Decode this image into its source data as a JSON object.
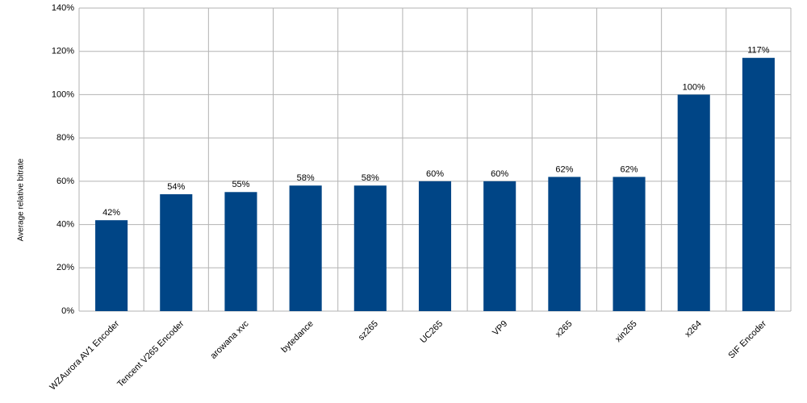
{
  "chart_data": {
    "type": "bar",
    "y_label": "Average relative bitrate",
    "categories": [
      "WZAurora AV1 Encoder",
      "Tencent V265 Encoder",
      "arowana xvc",
      "bytedance",
      "sz265",
      "UC265",
      "VP9",
      "x265",
      "xin265",
      "x264",
      "SIF Encoder"
    ],
    "values": [
      42,
      54,
      55,
      58,
      58,
      60,
      60,
      62,
      62,
      100,
      117
    ],
    "value_labels": [
      "42%",
      "54%",
      "55%",
      "58%",
      "58%",
      "60%",
      "60%",
      "62%",
      "62%",
      "100%",
      "117%"
    ],
    "color": "#004586",
    "ylim": [
      0,
      140
    ],
    "yticks": [
      {
        "value": 0,
        "label": "0%"
      },
      {
        "value": 20,
        "label": "20%"
      },
      {
        "value": 40,
        "label": "40%"
      },
      {
        "value": 60,
        "label": "60%"
      },
      {
        "value": 80,
        "label": "80%"
      },
      {
        "value": 100,
        "label": "100%"
      },
      {
        "value": 120,
        "label": "120%"
      },
      {
        "value": 140,
        "label": "140%"
      }
    ],
    "grid": true
  }
}
